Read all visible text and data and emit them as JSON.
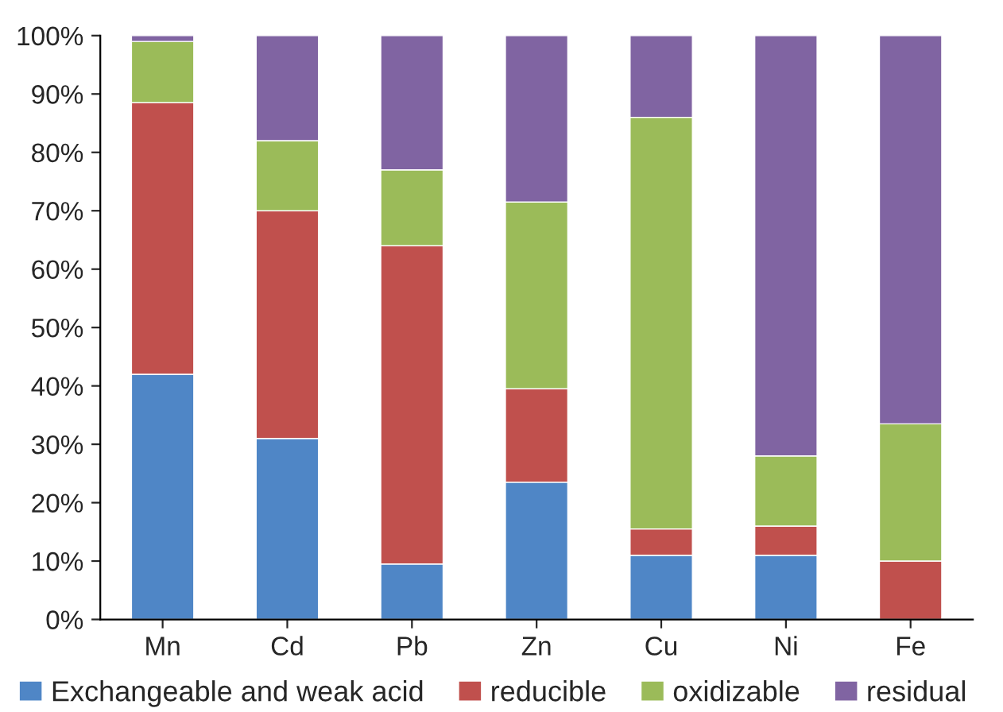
{
  "chart_data": {
    "type": "bar",
    "stacked": true,
    "categories": [
      "Mn",
      "Cd",
      "Pb",
      "Zn",
      "Cu",
      "Ni",
      "Fe"
    ],
    "series": [
      {
        "name": "Exchangeable and weak acid",
        "color": "#4f86c6",
        "values": [
          42,
          31,
          9.5,
          23.5,
          11,
          11,
          0
        ]
      },
      {
        "name": "reducible",
        "color": "#c0504d",
        "values": [
          46.5,
          39,
          54.5,
          16,
          4.5,
          5,
          10
        ]
      },
      {
        "name": "oxidizable",
        "color": "#9bbb59",
        "values": [
          10.5,
          12,
          13,
          32,
          70.5,
          12,
          23.5
        ]
      },
      {
        "name": "residual",
        "color": "#8064a2",
        "values": [
          1,
          18,
          23,
          28.5,
          14,
          72,
          66.5
        ]
      }
    ],
    "ylim": [
      0,
      100
    ],
    "yticks": [
      {
        "value": 0,
        "label": "0%"
      },
      {
        "value": 10,
        "label": "10%"
      },
      {
        "value": 20,
        "label": "20%"
      },
      {
        "value": 30,
        "label": "30%"
      },
      {
        "value": 40,
        "label": "40%"
      },
      {
        "value": 50,
        "label": "50%"
      },
      {
        "value": 60,
        "label": "60%"
      },
      {
        "value": 70,
        "label": "70%"
      },
      {
        "value": 80,
        "label": "80%"
      },
      {
        "value": 90,
        "label": "90%"
      },
      {
        "value": 100,
        "label": "100%"
      }
    ],
    "grid": false,
    "legend": "bottom"
  }
}
